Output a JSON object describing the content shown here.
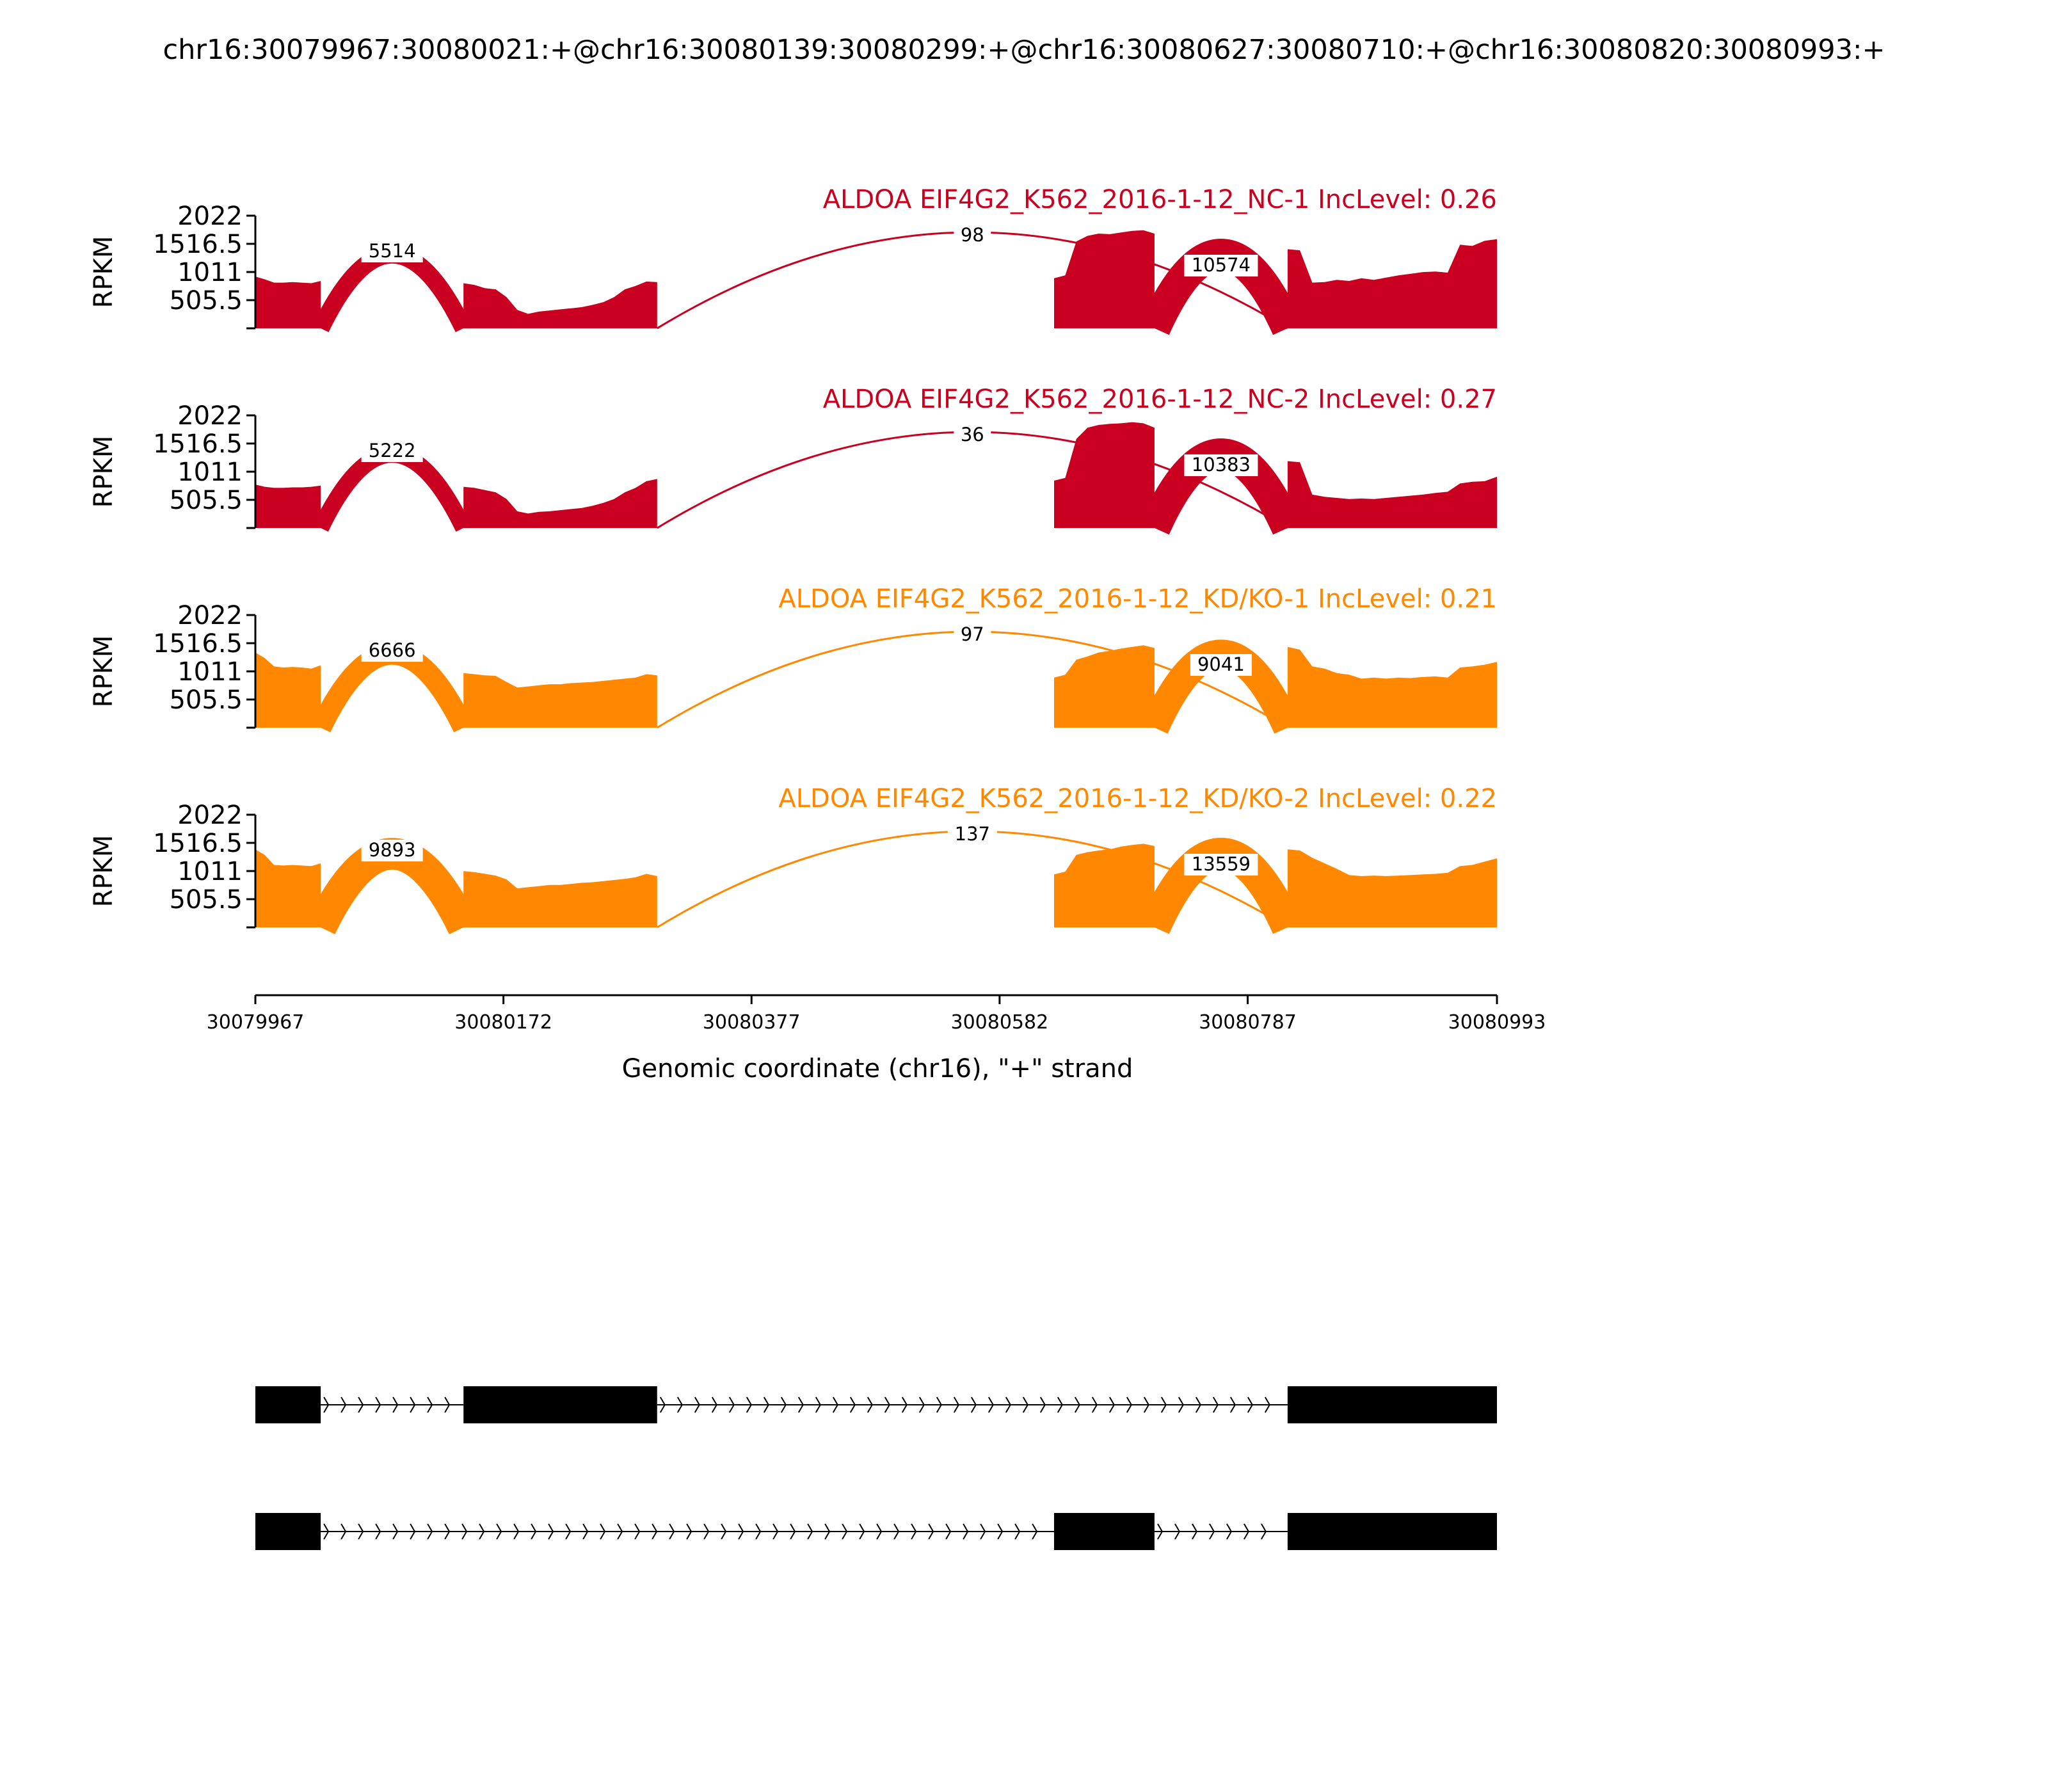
{
  "chart_data": {
    "type": "sashimi",
    "title": "chr16:30079967:30080021:+@chr16:30080139:30080299:+@chr16:30080627:30080710:+@chr16:30080820:30080993:+",
    "xlabel": "Genomic coordinate (chr16), \"+\" strand",
    "ylabel": "RPKM",
    "xlim": [
      30079967,
      30080993
    ],
    "ylim": [
      0,
      2022
    ],
    "xticks": [
      "30079967",
      "30080172",
      "30080377",
      "30080582",
      "30080787",
      "30080993"
    ],
    "yticks": [
      "505.5",
      "1011",
      "1516.5",
      "2022"
    ],
    "series": [
      {
        "name": "ALDOA EIF4G2_K562_2016-1-12_NC-1 IncLevel: 0.26",
        "color": "#ca0020",
        "junctions": [
          {
            "from": 30080021,
            "to": 30080139,
            "count": "5514"
          },
          {
            "from": 30080299,
            "to": 30080820,
            "count": "98"
          },
          {
            "from": 30080710,
            "to": 30080820,
            "count": "10574"
          }
        ],
        "coverage": [
          {
            "from": 30079967,
            "to": 30080021,
            "values": [
              930,
              880,
              820,
              820,
              830,
              820,
              810,
              850
            ]
          },
          {
            "from": 30080139,
            "to": 30080299,
            "values": [
              810,
              780,
              720,
              700,
              560,
              330,
              260,
              300,
              320,
              340,
              360,
              380,
              420,
              470,
              560,
              700,
              760,
              840,
              830
            ]
          },
          {
            "from": 30080627,
            "to": 30080710,
            "values": [
              900,
              950,
              1560,
              1660,
              1700,
              1690,
              1720,
              1750,
              1760,
              1700
            ]
          },
          {
            "from": 30080820,
            "to": 30080993,
            "values": [
              1420,
              1400,
              820,
              830,
              870,
              850,
              900,
              870,
              910,
              950,
              980,
              1010,
              1020,
              1000,
              1500,
              1480,
              1570,
              1600
            ]
          }
        ]
      },
      {
        "name": "ALDOA EIF4G2_K562_2016-1-12_NC-2 IncLevel: 0.27",
        "color": "#ca0020",
        "junctions": [
          {
            "from": 30080021,
            "to": 30080139,
            "count": "5222"
          },
          {
            "from": 30080299,
            "to": 30080820,
            "count": "36"
          },
          {
            "from": 30080710,
            "to": 30080820,
            "count": "10383"
          }
        ],
        "coverage": [
          {
            "from": 30079967,
            "to": 30080021,
            "values": [
              780,
              740,
              720,
              720,
              730,
              730,
              740,
              760
            ]
          },
          {
            "from": 30080139,
            "to": 30080299,
            "values": [
              740,
              720,
              680,
              640,
              520,
              300,
              260,
              290,
              300,
              320,
              340,
              360,
              400,
              450,
              520,
              640,
              720,
              840,
              880
            ]
          },
          {
            "from": 30080627,
            "to": 30080710,
            "values": [
              850,
              900,
              1600,
              1800,
              1850,
              1870,
              1880,
              1900,
              1880,
              1800
            ]
          },
          {
            "from": 30080820,
            "to": 30080993,
            "values": [
              1200,
              1180,
              600,
              560,
              540,
              520,
              530,
              520,
              540,
              560,
              580,
              600,
              630,
              650,
              800,
              830,
              840,
              920
            ]
          }
        ]
      },
      {
        "name": "ALDOA EIF4G2_K562_2016-1-12_KD/KO-1 IncLevel: 0.21",
        "color": "#ff8800",
        "junctions": [
          {
            "from": 30080021,
            "to": 30080139,
            "count": "6666"
          },
          {
            "from": 30080299,
            "to": 30080820,
            "count": "97"
          },
          {
            "from": 30080710,
            "to": 30080820,
            "count": "9041"
          }
        ],
        "coverage": [
          {
            "from": 30079967,
            "to": 30080021,
            "values": [
              1350,
              1250,
              1100,
              1080,
              1090,
              1080,
              1060,
              1120
            ]
          },
          {
            "from": 30080139,
            "to": 30080299,
            "values": [
              980,
              960,
              940,
              930,
              820,
              720,
              740,
              760,
              780,
              780,
              800,
              810,
              820,
              840,
              860,
              880,
              900,
              960,
              940
            ]
          },
          {
            "from": 30080627,
            "to": 30080710,
            "values": [
              900,
              950,
              1220,
              1280,
              1350,
              1380,
              1420,
              1450,
              1480,
              1430
            ]
          },
          {
            "from": 30080820,
            "to": 30080993,
            "values": [
              1450,
              1400,
              1100,
              1060,
              980,
              950,
              880,
              900,
              880,
              900,
              890,
              910,
              920,
              900,
              1080,
              1100,
              1130,
              1180
            ]
          }
        ]
      },
      {
        "name": "ALDOA EIF4G2_K562_2016-1-12_KD/KO-2 IncLevel: 0.22",
        "color": "#ff8800",
        "junctions": [
          {
            "from": 30080021,
            "to": 30080139,
            "count": "9893"
          },
          {
            "from": 30080299,
            "to": 30080820,
            "count": "137"
          },
          {
            "from": 30080710,
            "to": 30080820,
            "count": "13559"
          }
        ],
        "coverage": [
          {
            "from": 30079967,
            "to": 30080021,
            "values": [
              1400,
              1300,
              1120,
              1110,
              1120,
              1110,
              1100,
              1150
            ]
          },
          {
            "from": 30080139,
            "to": 30080299,
            "values": [
              1010,
              990,
              960,
              930,
              860,
              700,
              720,
              740,
              760,
              760,
              780,
              800,
              810,
              830,
              850,
              870,
              900,
              960,
              920
            ]
          },
          {
            "from": 30080627,
            "to": 30080710,
            "values": [
              950,
              1000,
              1300,
              1350,
              1380,
              1400,
              1450,
              1480,
              1500,
              1460
            ]
          },
          {
            "from": 30080820,
            "to": 30080993,
            "values": [
              1400,
              1380,
              1250,
              1150,
              1050,
              940,
              920,
              930,
              920,
              930,
              940,
              950,
              960,
              980,
              1100,
              1120,
              1180,
              1240
            ]
          }
        ]
      }
    ],
    "isoforms": [
      {
        "exons": [
          [
            30079967,
            30080021
          ],
          [
            30080139,
            30080299
          ],
          [
            30080820,
            30080993
          ]
        ]
      },
      {
        "exons": [
          [
            30079967,
            30080021
          ],
          [
            30080627,
            30080710
          ],
          [
            30080820,
            30080993
          ]
        ]
      }
    ]
  }
}
